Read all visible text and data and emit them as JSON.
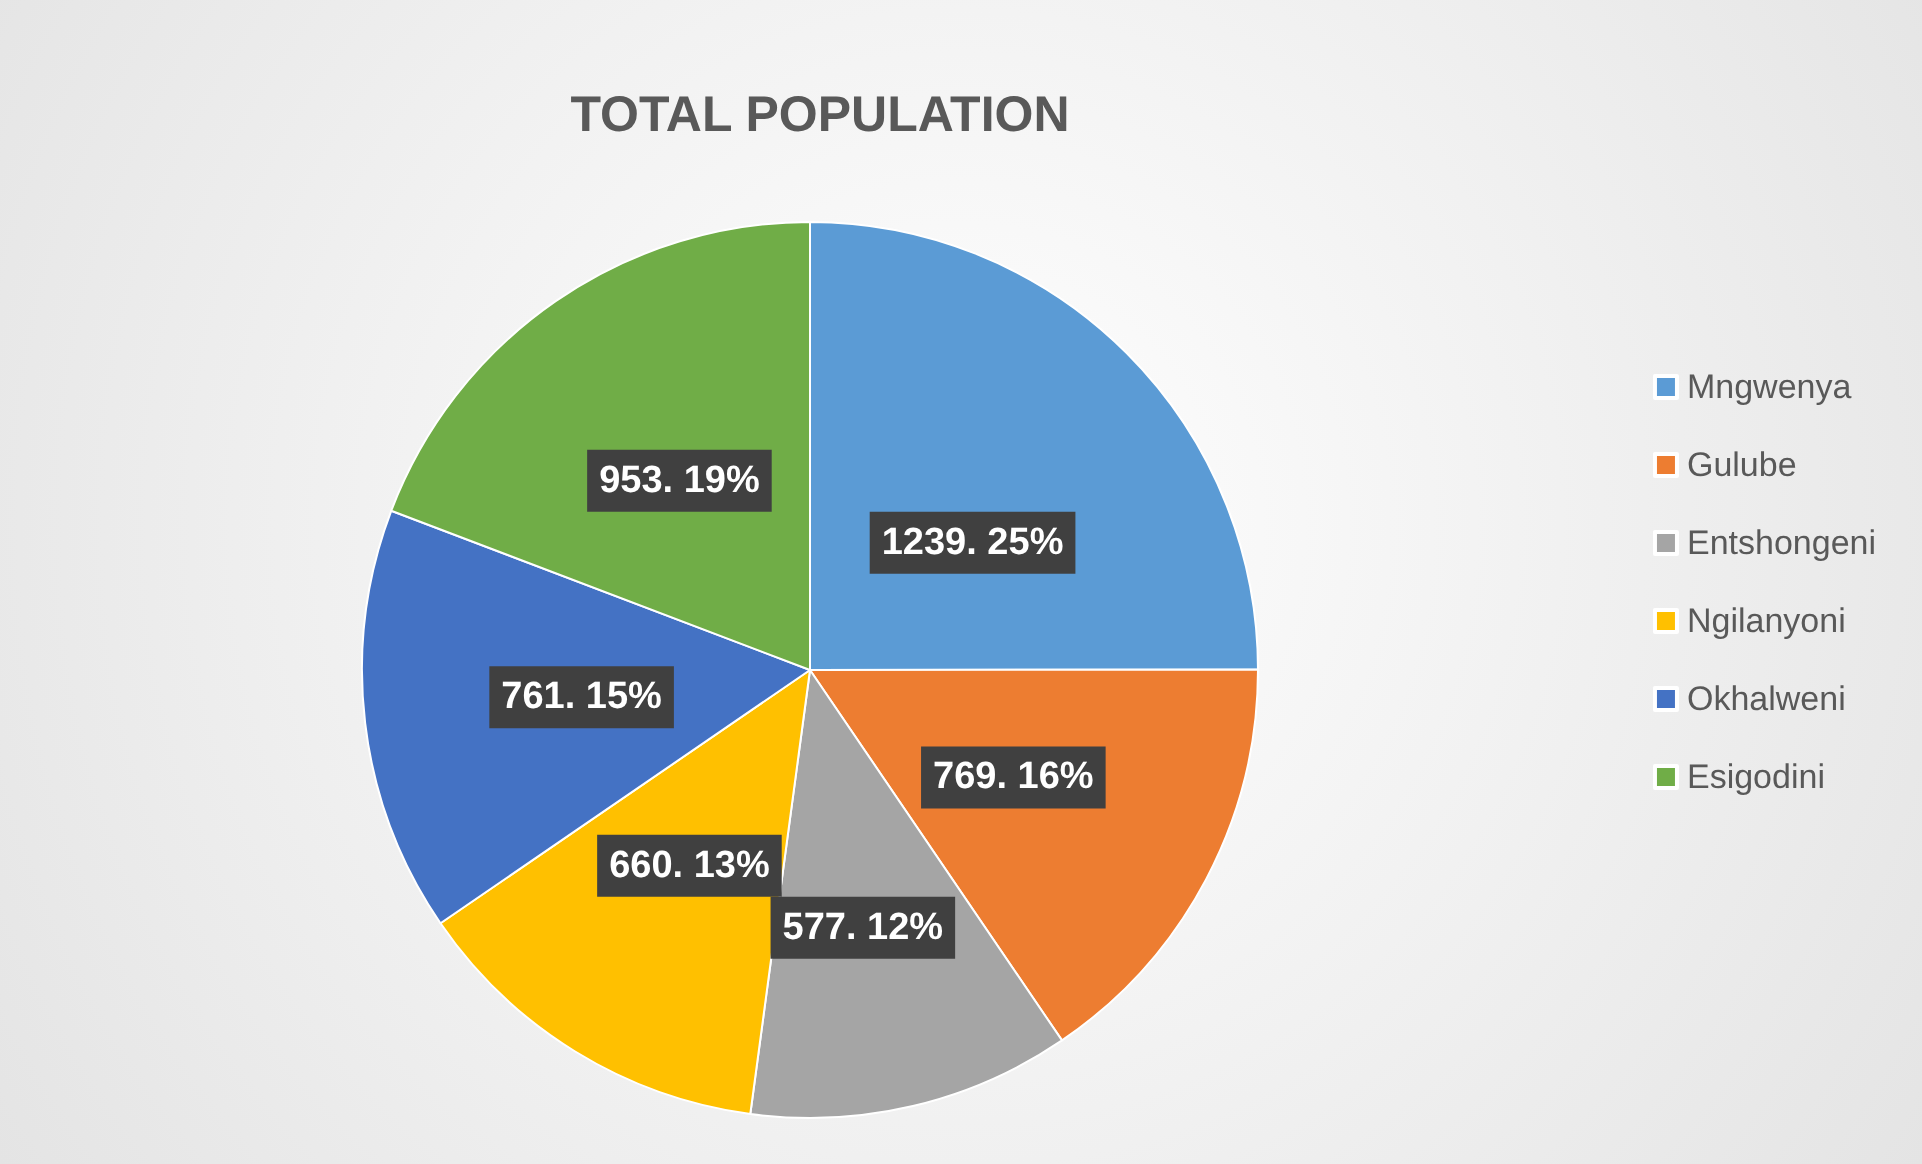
{
  "chart_data": {
    "type": "pie",
    "title": "TOTAL POPULATION",
    "categories": [
      "Mngwenya",
      "Gulube",
      "Entshongeni",
      "Ngilanyoni",
      "Okhalweni",
      "Esigodini"
    ],
    "values": [
      1239,
      769,
      577,
      660,
      761,
      953
    ],
    "colors": [
      "#5b9bd5",
      "#ed7d31",
      "#a5a5a5",
      "#ffc000",
      "#4472c4",
      "#70ad47"
    ],
    "value_labels": [
      "1239. 25%",
      "769. 16%",
      "577. 12%",
      "660. 13%",
      "761. 15%",
      "953. 19%"
    ],
    "legend": "right"
  }
}
